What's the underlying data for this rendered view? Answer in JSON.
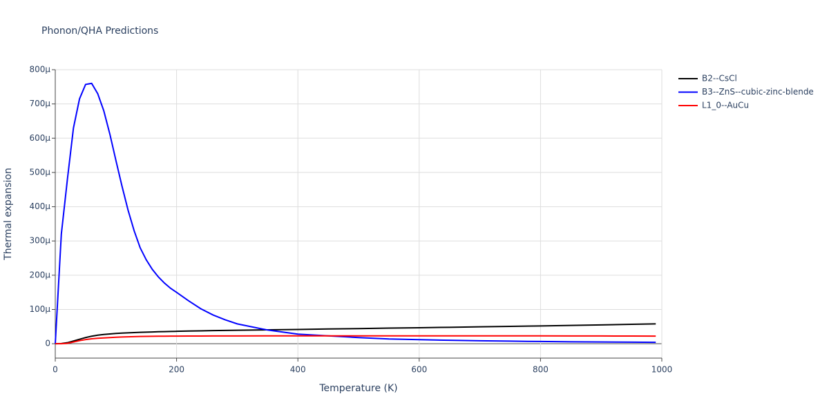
{
  "chart_data": {
    "type": "line",
    "title": "Phonon/QHA Predictions",
    "x_label": "Temperature (K)",
    "y_label": "Thermal expansion",
    "x": [
      0,
      10,
      20,
      30,
      40,
      50,
      60,
      70,
      80,
      90,
      100,
      110,
      120,
      130,
      140,
      150,
      160,
      170,
      180,
      190,
      200,
      220,
      240,
      260,
      280,
      300,
      350,
      400,
      450,
      500,
      550,
      600,
      650,
      700,
      750,
      800,
      850,
      900,
      950,
      990
    ],
    "series": [
      {
        "name": "B2--CsCl",
        "color": "#000000",
        "values": [
          0,
          5e-07,
          3e-06,
          8e-06,
          1.3e-05,
          1.8e-05,
          2.2e-05,
          2.5e-05,
          2.7e-05,
          2.85e-05,
          3e-05,
          3.1e-05,
          3.18e-05,
          3.25e-05,
          3.32e-05,
          3.38e-05,
          3.44e-05,
          3.5e-05,
          3.54e-05,
          3.58e-05,
          3.62e-05,
          3.7e-05,
          3.76e-05,
          3.82e-05,
          3.88e-05,
          3.93e-05,
          4.05e-05,
          4.17e-05,
          4.3e-05,
          4.42e-05,
          4.55e-05,
          4.67e-05,
          4.8e-05,
          4.93e-05,
          5.06e-05,
          5.2e-05,
          5.35e-05,
          5.5e-05,
          5.66e-05,
          5.8e-05
        ]
      },
      {
        "name": "B3--ZnS--cubic-zinc-blende",
        "color": "#0000ff",
        "values": [
          0,
          0.00032,
          0.00048,
          0.00063,
          0.000715,
          0.000757,
          0.00076,
          0.00073,
          0.00068,
          0.000612,
          0.000535,
          0.00046,
          0.00039,
          0.00033,
          0.00028,
          0.000245,
          0.000217,
          0.000195,
          0.000177,
          0.000162,
          0.00015,
          0.000125,
          0.000102,
          8.4e-05,
          7e-05,
          5.8e-05,
          4e-05,
          2.8e-05,
          2.3e-05,
          1.8e-05,
          1.4e-05,
          1.2e-05,
          1e-05,
          8.5e-06,
          7.5e-06,
          6.5e-06,
          5.5e-06,
          5e-06,
          4.5e-06,
          4e-06
        ]
      },
      {
        "name": "L1_0--AuCu",
        "color": "#ff0000",
        "values": [
          0,
          0,
          1e-06,
          5e-06,
          9e-06,
          1.2e-05,
          1.45e-05,
          1.6e-05,
          1.7e-05,
          1.8e-05,
          1.9e-05,
          1.98e-05,
          2.03e-05,
          2.08e-05,
          2.12e-05,
          2.15e-05,
          2.17e-05,
          2.19e-05,
          2.2e-05,
          2.21e-05,
          2.22e-05,
          2.24e-05,
          2.25e-05,
          2.26e-05,
          2.27e-05,
          2.28e-05,
          2.3e-05,
          2.3e-05,
          2.3e-05,
          2.3e-05,
          2.3e-05,
          2.3e-05,
          2.3e-05,
          2.3e-05,
          2.3e-05,
          2.3e-05,
          2.28e-05,
          2.26e-05,
          2.24e-05,
          2.23e-05
        ]
      }
    ],
    "xlim": [
      0,
      1000
    ],
    "xticks": [
      0,
      200,
      400,
      600,
      800,
      1000
    ],
    "ylim": [
      -4.2e-05,
      0.0008
    ],
    "yticks": [
      0,
      {
        "value": 0.0001,
        "label": "100μ"
      },
      {
        "value": 0.0002,
        "label": "200μ"
      },
      {
        "value": 0.0003,
        "label": "300μ"
      },
      {
        "value": 0.0004,
        "label": "400μ"
      },
      {
        "value": 0.0005,
        "label": "500μ"
      },
      {
        "value": 0.0006,
        "label": "600μ"
      },
      {
        "value": 0.0007,
        "label": "700μ"
      },
      {
        "value": 0.0008,
        "label": "800μ"
      }
    ],
    "grid": true,
    "legend": "right"
  }
}
